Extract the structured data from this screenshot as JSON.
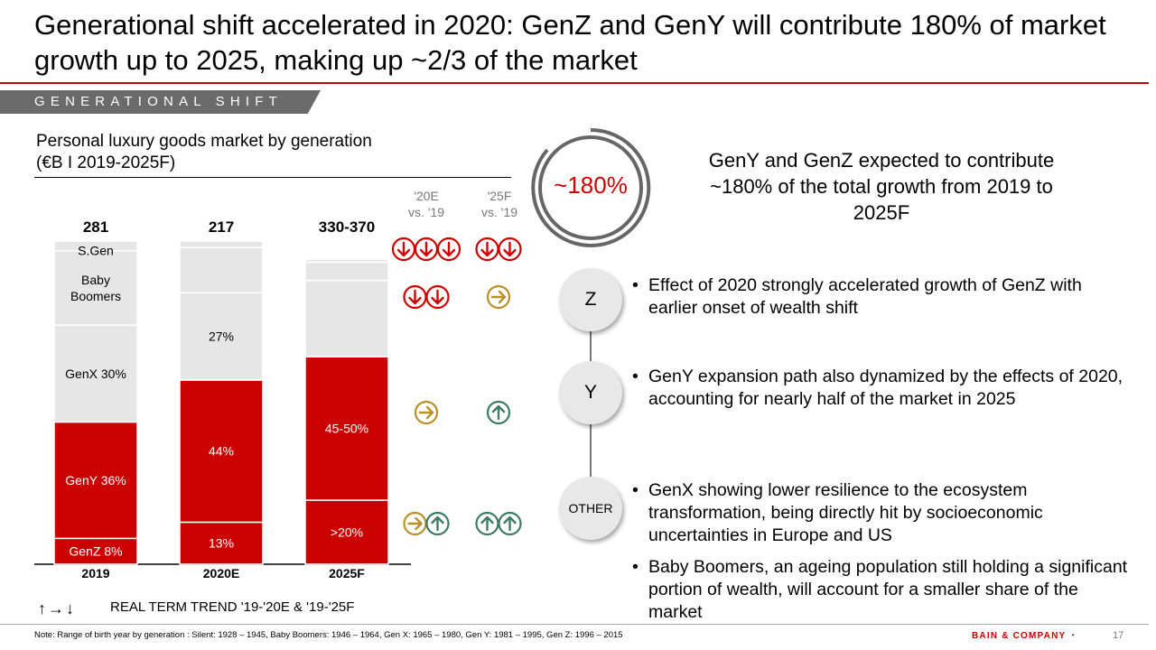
{
  "title": "Generational shift accelerated in 2020: GenZ and GenY will contribute 180% of market growth up to 2025, making up ~2/3 of the market",
  "section_tab": "GENERATIONAL SHIFT",
  "chart_title_line1": "Personal luxury goods market by generation",
  "chart_title_line2": "(€B I 2019-2025F)",
  "trend_headers": {
    "col1_line1": "'20E",
    "col1_line2": "vs. '19",
    "col2_line1": "'25F",
    "col2_line2": "vs. '19"
  },
  "chart_data": {
    "type": "bar",
    "stacked": true,
    "categories": [
      "2019",
      "2020E",
      "2025F"
    ],
    "totals": [
      "281",
      "217",
      "330-370"
    ],
    "segments": [
      {
        "name": "GenZ",
        "values": [
          8,
          13,
          21
        ],
        "labels": [
          "GenZ 8%",
          "13%",
          ">20%"
        ],
        "color": "#cc0000"
      },
      {
        "name": "GenY",
        "values": [
          36,
          44,
          47
        ],
        "labels": [
          "GenY 36%",
          "44%",
          "45-50%"
        ],
        "color": "#cc0000"
      },
      {
        "name": "GenX",
        "values": [
          30,
          27,
          25
        ],
        "labels": [
          "GenX 30%",
          "27%",
          ""
        ],
        "color": "#e6e6e6"
      },
      {
        "name": "Baby Boomers",
        "values": [
          23,
          14,
          6
        ],
        "labels": [
          "Baby Boomers",
          "",
          ""
        ],
        "color": "#e6e6e6"
      },
      {
        "name": "S.Gen",
        "values": [
          3,
          2,
          1
        ],
        "labels": [
          "S.Gen",
          "",
          ""
        ],
        "color": "#e6e6e6"
      }
    ],
    "trends": [
      {
        "row": "S.Gen",
        "col1": [
          "down",
          "down",
          "down"
        ],
        "col2": [
          "down",
          "down"
        ],
        "col1_color": "#cc0000",
        "col2_color": "#cc0000"
      },
      {
        "row": "Baby Boomers",
        "col1": [
          "down",
          "down"
        ],
        "col2": [
          "right"
        ],
        "col1_color": "#cc0000",
        "col2_color": "#b8902a"
      },
      {
        "row": "GenY",
        "col1": [
          "right"
        ],
        "col2": [
          "up"
        ],
        "col1_color": "#b8902a",
        "col2_color": "#3f7a64"
      },
      {
        "row": "GenZ",
        "col1": [
          "right",
          "up"
        ],
        "col2": [
          "up",
          "up"
        ],
        "col1_color": "#b8902a",
        "col2_color": "#3f7a64",
        "col1_colors": [
          "#b8902a",
          "#3f7a64"
        ]
      }
    ]
  },
  "legend_icons": "↑→↓",
  "legend_text": "REAL TERM TREND '19-'20E & '19-'25F",
  "ring_label": "~180%",
  "headline": "GenY and GenZ expected to contribute ~180% of the total growth from 2019 to 2025F",
  "nodes": {
    "z": "Z",
    "y": "Y",
    "other": "OTHER"
  },
  "bullets": [
    "Effect of 2020 strongly accelerated growth of GenZ with earlier onset of wealth shift",
    "GenY expansion path also dynamized by the effects of 2020, accounting for nearly half of the market in 2025",
    "GenX showing lower resilience to the ecosystem transformation, being directly hit by socioeconomic uncertainties in Europe and US",
    "Baby Boomers, an ageing population still holding a significant portion of wealth, will account for a smaller share of the market"
  ],
  "note": "Note: Range of birth year by generation : Silent: 1928 – 1945, Baby Boomers: 1946 – 1964, Gen X: 1965 – 1980, Gen Y: 1981 – 1995, Gen Z: 1996 – 2015",
  "logo": "BAIN & COMPANY",
  "page_number": "17"
}
